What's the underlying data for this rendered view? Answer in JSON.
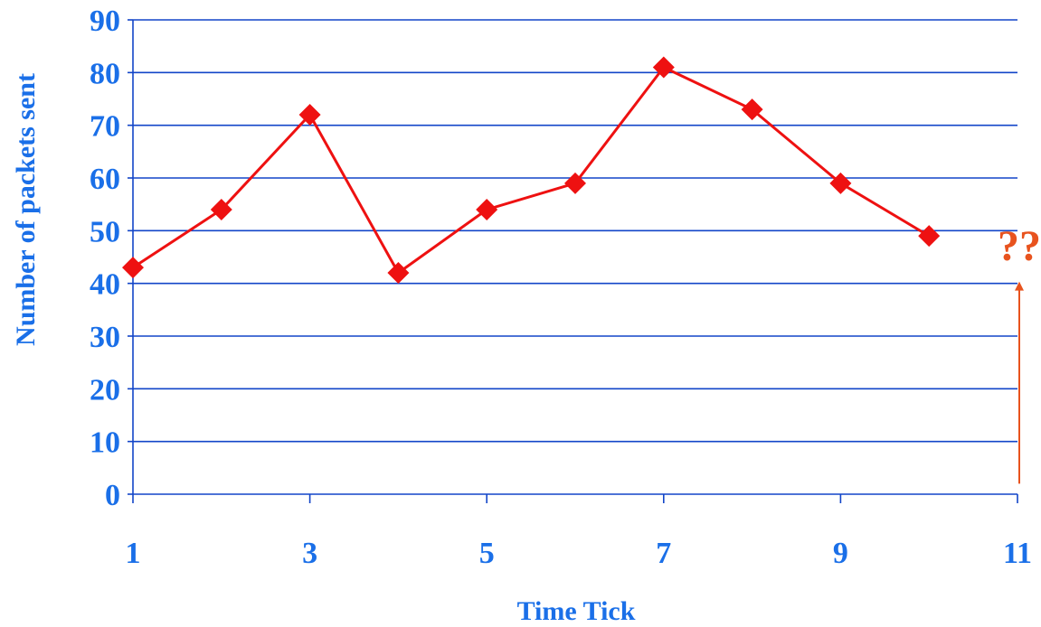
{
  "colors": {
    "axis_text": "#1a6fe8",
    "gridline": "#1245c8",
    "axis_line": "#1245c8",
    "series": "#ee1111",
    "annotation": "#e8531e",
    "arrow": "#e8531e"
  },
  "chart_data": {
    "type": "line",
    "xlabel": "Time Tick",
    "ylabel": "Number of packets sent",
    "xlim": [
      1,
      11
    ],
    "ylim": [
      0,
      90
    ],
    "x_ticks": [
      1,
      3,
      5,
      7,
      9,
      11
    ],
    "x_ticks_minor": [
      1,
      2,
      3,
      4,
      5,
      6,
      7,
      8,
      9,
      10,
      11
    ],
    "y_ticks": [
      0,
      10,
      20,
      30,
      40,
      50,
      60,
      70,
      80,
      90
    ],
    "grid": "horizontal",
    "legend": "none",
    "series": [
      {
        "marker": "diamond",
        "x": [
          1,
          2,
          3,
          4,
          5,
          6,
          7,
          8,
          9,
          10
        ],
        "y": [
          43,
          54,
          72,
          42,
          54,
          59,
          81,
          73,
          59,
          49
        ]
      }
    ],
    "annotation": {
      "text": "??",
      "x": 11,
      "arrow_y_from": 2,
      "arrow_y_to": 40
    }
  }
}
